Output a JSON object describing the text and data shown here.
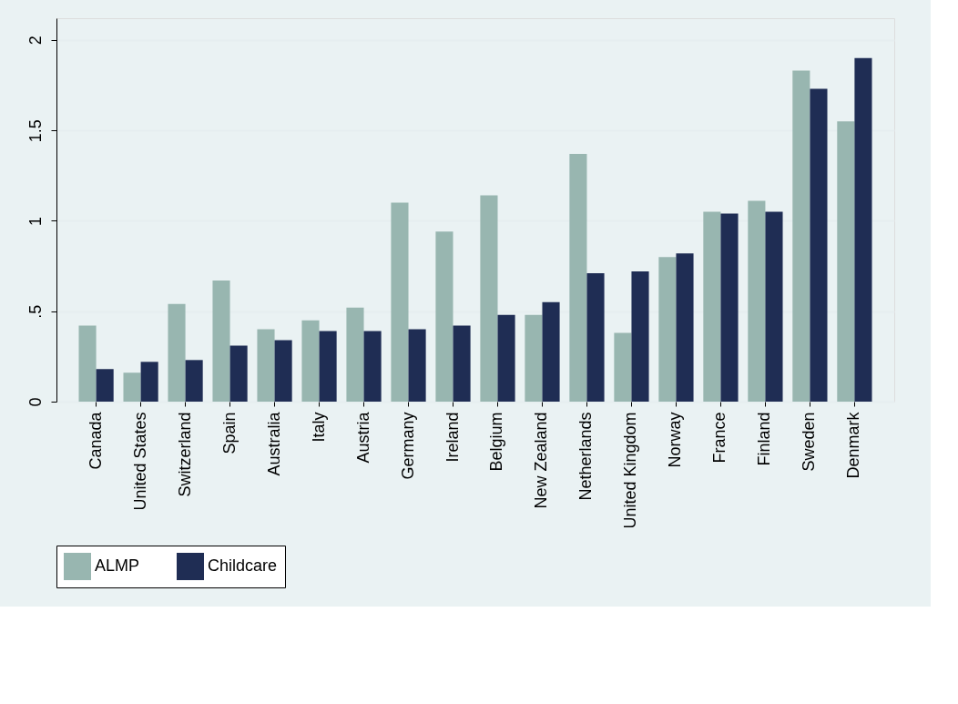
{
  "chart_data": {
    "type": "bar",
    "categories": [
      "Canada",
      "United States",
      "Switzerland",
      "Spain",
      "Australia",
      "Italy",
      "Austria",
      "Germany",
      "Ireland",
      "Belgium",
      "New Zealand",
      "Netherlands",
      "United Kingdom",
      "Norway",
      "France",
      "Finland",
      "Sweden",
      "Denmark"
    ],
    "series": [
      {
        "name": "ALMP",
        "color": "#98b6b0",
        "values": [
          0.42,
          0.16,
          0.54,
          0.67,
          0.4,
          0.45,
          0.52,
          1.1,
          0.94,
          1.14,
          0.48,
          1.37,
          0.38,
          0.8,
          1.05,
          1.11,
          1.83,
          1.55
        ]
      },
      {
        "name": "Childcare",
        "color": "#1f2d54",
        "values": [
          0.18,
          0.22,
          0.23,
          0.31,
          0.34,
          0.39,
          0.39,
          0.4,
          0.42,
          0.48,
          0.55,
          0.71,
          0.72,
          0.82,
          1.04,
          1.05,
          1.73,
          1.9
        ]
      }
    ],
    "ylim": [
      0,
      2.12
    ],
    "yticks": [
      0,
      {
        "value": 0.5,
        "label": ".5"
      },
      1,
      1.5,
      2
    ],
    "grid": "y",
    "legend": "bottom"
  }
}
